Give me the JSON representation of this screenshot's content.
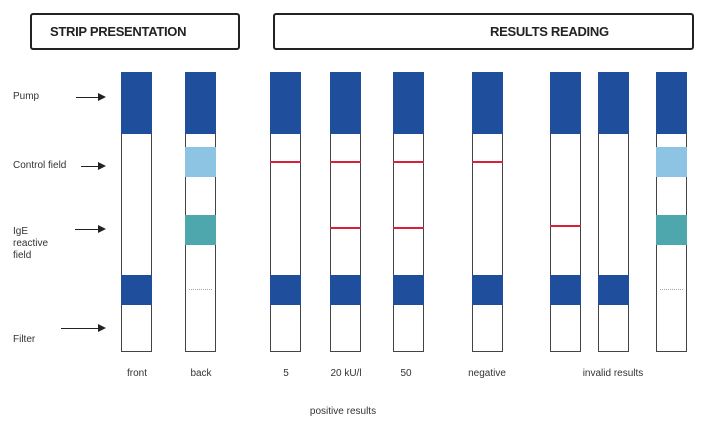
{
  "headers": {
    "strip_presentation": "STRIP PRESENTATION",
    "results_reading": "RESULTS READING"
  },
  "row_labels": {
    "pump": "Pump",
    "control_field": "Control field",
    "ige_reactive_field": "IgE reactive field",
    "filter": "Filter"
  },
  "strip_captions": {
    "front": "front",
    "back": "back",
    "result_5": "5",
    "result_20": "20 kU/l",
    "result_50": "50",
    "negative": "negative",
    "invalid": "invalid results"
  },
  "footer": "positive results",
  "colors": {
    "pad_blue": "#1f4e9c",
    "control_light_blue": "#8ec4e3",
    "ige_teal": "#4ea7ad",
    "reaction_red": "#d8203a"
  }
}
